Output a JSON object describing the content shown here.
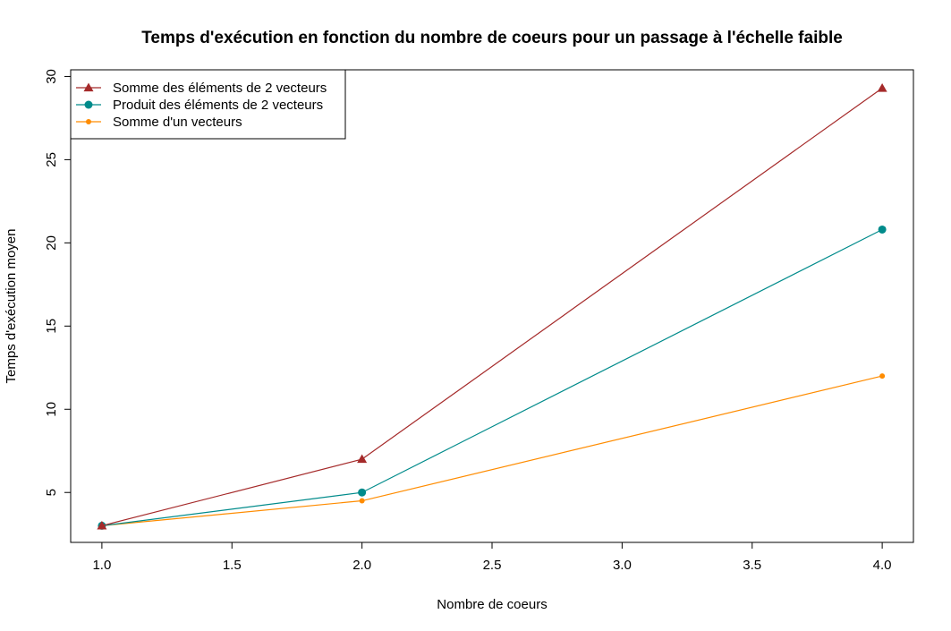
{
  "chart_data": {
    "type": "line",
    "title": "Temps d'exécution en fonction du nombre de coeurs pour un passage à l'échelle faible",
    "xlabel": "Nombre de coeurs",
    "ylabel": "Temps d'exécution moyen",
    "xlim": [
      0.88,
      4.12
    ],
    "ylim": [
      2.0,
      30.4
    ],
    "x_ticks": [
      1.0,
      1.5,
      2.0,
      2.5,
      3.0,
      3.5,
      4.0
    ],
    "x_tick_labels": [
      "1.0",
      "1.5",
      "2.0",
      "2.5",
      "3.0",
      "3.5",
      "4.0"
    ],
    "y_ticks": [
      5,
      10,
      15,
      20,
      25,
      30
    ],
    "y_tick_labels": [
      "5",
      "10",
      "15",
      "20",
      "25",
      "30"
    ],
    "grid": false,
    "legend_position": "top-left",
    "x": [
      1,
      2,
      4
    ],
    "series": [
      {
        "name": "Somme des éléments de 2 vecteurs",
        "values": [
          3.0,
          7.0,
          29.3
        ],
        "color": "#a52a2a",
        "marker": "triangle"
      },
      {
        "name": "Produit des éléments de 2 vecteurs",
        "values": [
          3.0,
          5.0,
          20.8
        ],
        "color": "#008b8b",
        "marker": "circle"
      },
      {
        "name": "Somme d'un vecteurs",
        "values": [
          3.0,
          4.5,
          12.0
        ],
        "color": "#ff8c00",
        "marker": "small-circle"
      }
    ]
  }
}
